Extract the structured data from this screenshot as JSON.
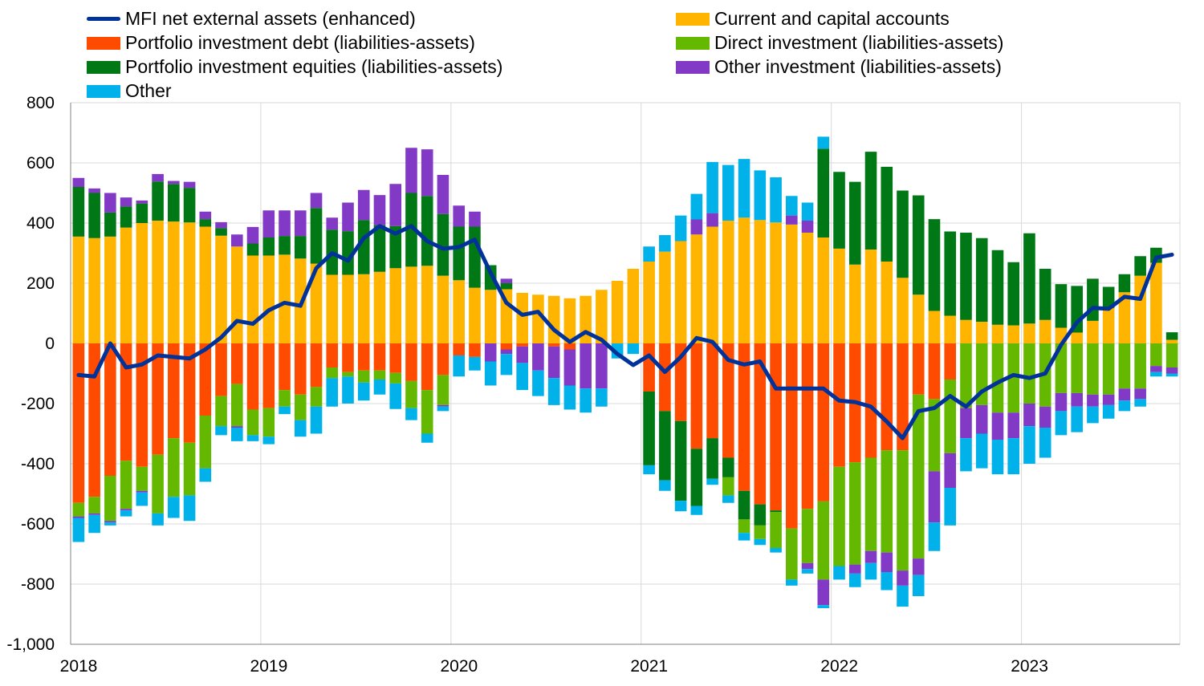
{
  "chart_data": {
    "type": "bar",
    "stacked": true,
    "title": "",
    "xlabel": "",
    "ylabel": "",
    "ylim": [
      -1000,
      800
    ],
    "yticks": [
      800,
      600,
      400,
      200,
      0,
      -200,
      -400,
      -600,
      -800,
      -1000
    ],
    "ytick_labels": [
      "800",
      "600",
      "400",
      "200",
      "0",
      "-200",
      "-400",
      "-600",
      "-800",
      "-1,000"
    ],
    "xtick_labels": [
      "2018",
      "2019",
      "2020",
      "2021",
      "2022",
      "2023"
    ],
    "grid": true,
    "legend": "top",
    "months": [
      "2018-01",
      "2018-02",
      "2018-03",
      "2018-04",
      "2018-05",
      "2018-06",
      "2018-07",
      "2018-08",
      "2018-09",
      "2018-10",
      "2018-11",
      "2018-12",
      "2019-01",
      "2019-02",
      "2019-03",
      "2019-04",
      "2019-05",
      "2019-06",
      "2019-07",
      "2019-08",
      "2019-09",
      "2019-10",
      "2019-11",
      "2019-12",
      "2020-01",
      "2020-02",
      "2020-03",
      "2020-04",
      "2020-05",
      "2020-06",
      "2020-07",
      "2020-08",
      "2020-09",
      "2020-10",
      "2020-11",
      "2020-12",
      "2021-01",
      "2021-02",
      "2021-03",
      "2021-04",
      "2021-05",
      "2021-06",
      "2021-07",
      "2021-08",
      "2021-09",
      "2021-10",
      "2021-11",
      "2021-12",
      "2022-01",
      "2022-02",
      "2022-03",
      "2022-04",
      "2022-05",
      "2022-06",
      "2022-07",
      "2022-08",
      "2022-09",
      "2022-10",
      "2022-11",
      "2022-12",
      "2023-01",
      "2023-02",
      "2023-03",
      "2023-04",
      "2023-05",
      "2023-06",
      "2023-07",
      "2023-08",
      "2023-09",
      "2023-10"
    ],
    "series": [
      {
        "name": "Current and capital accounts",
        "color": "#FFB400",
        "values": [
          355,
          350,
          355,
          385,
          400,
          408,
          405,
          402,
          388,
          358,
          322,
          292,
          292,
          295,
          282,
          265,
          228,
          228,
          230,
          238,
          250,
          255,
          258,
          225,
          210,
          185,
          178,
          180,
          168,
          162,
          158,
          150,
          158,
          178,
          208,
          248,
          272,
          305,
          340,
          362,
          388,
          408,
          418,
          410,
          402,
          395,
          368,
          352,
          315,
          262,
          312,
          272,
          218,
          162,
          108,
          92,
          78,
          72,
          62,
          60,
          66,
          78,
          52,
          36,
          75,
          118,
          170,
          225,
          268,
          12
        ]
      },
      {
        "name": "Portfolio investment debt (liabilities-assets)",
        "color": "#FF4B00",
        "values": [
          -530,
          -510,
          -440,
          -390,
          -410,
          -370,
          -315,
          -330,
          -240,
          -175,
          -135,
          -220,
          -215,
          -155,
          -170,
          -145,
          -80,
          -95,
          -90,
          -90,
          -98,
          -125,
          -155,
          -105,
          -40,
          -45,
          0,
          -20,
          -10,
          0,
          -10,
          -20,
          0,
          0,
          0,
          0,
          -160,
          -225,
          -258,
          -350,
          -315,
          -380,
          -490,
          -535,
          -555,
          -615,
          -550,
          -525,
          -410,
          -395,
          -380,
          -355,
          -355,
          -170,
          -185,
          -120,
          0,
          0,
          0,
          0,
          0,
          0,
          0,
          0,
          0,
          0,
          0,
          0,
          0,
          0
        ]
      },
      {
        "name": "Portfolio investment equities (liabilities-assets)",
        "color": "#007816",
        "values": [
          165,
          150,
          80,
          70,
          65,
          130,
          125,
          115,
          25,
          25,
          0,
          40,
          60,
          62,
          75,
          185,
          150,
          145,
          180,
          155,
          140,
          245,
          232,
          205,
          178,
          203,
          82,
          20,
          0,
          0,
          0,
          0,
          0,
          0,
          0,
          0,
          -245,
          -230,
          -265,
          -190,
          -135,
          -65,
          -95,
          -70,
          -5,
          0,
          0,
          295,
          255,
          275,
          325,
          315,
          290,
          330,
          305,
          280,
          290,
          278,
          248,
          210,
          300,
          170,
          145,
          155,
          140,
          70,
          60,
          65,
          50,
          25
        ]
      },
      {
        "name": "Direct investment (liabilities-assets)",
        "color": "#65B800",
        "values": [
          -45,
          -55,
          -150,
          -160,
          -80,
          -195,
          -195,
          -175,
          -175,
          -100,
          -140,
          -85,
          -95,
          -55,
          -85,
          -65,
          -35,
          -15,
          -40,
          -30,
          -35,
          -90,
          -145,
          -100,
          0,
          0,
          0,
          0,
          0,
          0,
          0,
          0,
          0,
          0,
          0,
          0,
          0,
          0,
          0,
          0,
          0,
          -60,
          -45,
          -45,
          -120,
          -170,
          -180,
          -260,
          -330,
          -340,
          -310,
          -340,
          -400,
          -545,
          -240,
          -245,
          -215,
          -205,
          -230,
          -230,
          -200,
          -210,
          -165,
          -165,
          -170,
          -170,
          -150,
          -150,
          -75,
          -80
        ]
      },
      {
        "name": "Other investment (liabilities-assets)",
        "color": "#8139C6",
        "values": [
          -5,
          -5,
          -5,
          -5,
          -5,
          0,
          0,
          0,
          0,
          0,
          -5,
          0,
          0,
          0,
          0,
          0,
          0,
          0,
          0,
          0,
          0,
          0,
          0,
          -5,
          0,
          0,
          -60,
          -15,
          -55,
          -90,
          -105,
          -120,
          -150,
          -150,
          0,
          0,
          0,
          0,
          0,
          0,
          0,
          0,
          0,
          0,
          0,
          0,
          -20,
          -85,
          0,
          -30,
          -40,
          -65,
          -50,
          -55,
          -170,
          -115,
          -100,
          -95,
          -90,
          -85,
          -75,
          -70,
          -60,
          -45,
          -40,
          -35,
          -40,
          -35,
          -20,
          -20
        ]
      },
      {
        "name": "Other",
        "color": "#00B1EA",
        "values": [
          -80,
          -60,
          -10,
          -20,
          -45,
          -40,
          -70,
          -85,
          -45,
          -30,
          -45,
          -20,
          -25,
          -25,
          -55,
          -90,
          -95,
          -90,
          -60,
          -50,
          -85,
          -40,
          -30,
          -15,
          -70,
          -45,
          -80,
          -70,
          -90,
          -85,
          -90,
          -80,
          -80,
          -60,
          -50,
          -35,
          -30,
          -35,
          -35,
          -30,
          -20,
          -25,
          -25,
          -20,
          -15,
          -20,
          -15,
          -10,
          -45,
          -45,
          -55,
          -60,
          -70,
          -70,
          -95,
          -125,
          -110,
          -115,
          -115,
          -120,
          -125,
          -100,
          -80,
          -85,
          -55,
          -45,
          -35,
          -25,
          -15,
          -10
        ]
      },
      {
        "name": "Other investment (liabilities-assets)_pos",
        "color": "#8139C6",
        "values": [
          30,
          15,
          65,
          30,
          10,
          25,
          10,
          20,
          25,
          20,
          40,
          55,
          90,
          85,
          85,
          50,
          40,
          95,
          100,
          100,
          140,
          150,
          155,
          130,
          70,
          50,
          0,
          15,
          0,
          0,
          0,
          0,
          0,
          0,
          0,
          0,
          0,
          0,
          0,
          50,
          45,
          0,
          0,
          0,
          0,
          30,
          40,
          0,
          0,
          0,
          0,
          0,
          0,
          0,
          0,
          0,
          0,
          0,
          0,
          0,
          0,
          0,
          0,
          0,
          0,
          0,
          0,
          0,
          0,
          0
        ]
      },
      {
        "name": "Other_pos",
        "color": "#00B1EA",
        "values": [
          0,
          0,
          0,
          0,
          0,
          0,
          0,
          0,
          0,
          0,
          0,
          0,
          0,
          0,
          0,
          0,
          0,
          0,
          0,
          0,
          0,
          0,
          0,
          0,
          0,
          0,
          0,
          0,
          0,
          0,
          0,
          0,
          0,
          0,
          0,
          0,
          50,
          55,
          85,
          85,
          170,
          185,
          195,
          165,
          150,
          65,
          60,
          40,
          0,
          0,
          0,
          0,
          0,
          0,
          0,
          0,
          0,
          0,
          0,
          0,
          0,
          0,
          0,
          0,
          0,
          0,
          0,
          0,
          0,
          0
        ]
      },
      {
        "name": "MFI net external assets (enhanced)",
        "type": "line",
        "color": "#003299",
        "values": [
          -105,
          -110,
          0,
          -80,
          -70,
          -40,
          -45,
          -50,
          -20,
          20,
          75,
          65,
          110,
          135,
          125,
          250,
          300,
          275,
          350,
          390,
          365,
          390,
          340,
          315,
          320,
          345,
          235,
          135,
          95,
          105,
          45,
          5,
          38,
          12,
          -35,
          -72,
          -40,
          -95,
          -45,
          18,
          5,
          -55,
          -70,
          -60,
          -150,
          -150,
          -150,
          -150,
          -190,
          -195,
          -210,
          -260,
          -315,
          -225,
          -215,
          -175,
          -210,
          -160,
          -130,
          -105,
          -115,
          -100,
          -5,
          70,
          118,
          115,
          155,
          148,
          285,
          295
        ]
      }
    ]
  },
  "legend": {
    "items": [
      {
        "label": "MFI net external assets (enhanced)",
        "color": "#003299",
        "kind": "line"
      },
      {
        "label": "Current and capital accounts",
        "color": "#FFB400",
        "kind": "bar"
      },
      {
        "label": "Portfolio investment debt (liabilities-assets)",
        "color": "#FF4B00",
        "kind": "bar"
      },
      {
        "label": "Direct investment (liabilities-assets)",
        "color": "#65B800",
        "kind": "bar"
      },
      {
        "label": "Portfolio investment equities (liabilities-assets)",
        "color": "#007816",
        "kind": "bar"
      },
      {
        "label": "Other investment (liabilities-assets)",
        "color": "#8139C6",
        "kind": "bar"
      },
      {
        "label": "Other",
        "color": "#00B1EA",
        "kind": "bar"
      }
    ]
  }
}
